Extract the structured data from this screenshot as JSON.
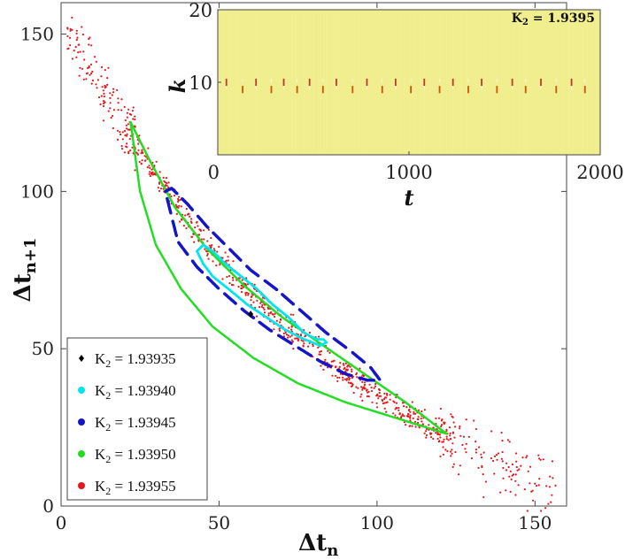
{
  "chart_data": {
    "type": "scatter",
    "main": {
      "xlabel": "Δt",
      "xlabel_sub": "n",
      "ylabel": "Δt",
      "ylabel_sub": "n+1",
      "xlim": [
        0,
        160
      ],
      "ylim": [
        0,
        160
      ],
      "xticks": [
        0,
        50,
        100,
        150
      ],
      "yticks": [
        0,
        50,
        100,
        150
      ],
      "legend_position": "bottom-left",
      "series": [
        {
          "name": "K2 = 1.93935",
          "label": "K",
          "sub": "2",
          "value": " = 1.93935",
          "color": "#000000",
          "marker": "diamond",
          "points": [
            [
              60,
              61
            ]
          ]
        },
        {
          "name": "K2 = 1.93940",
          "label": "K",
          "sub": "2",
          "value": " = 1.93940",
          "color": "#00e5ee",
          "marker": "dot",
          "loop_x": [
            43,
            45,
            48,
            52,
            57,
            62,
            67,
            72,
            77,
            81,
            83,
            84,
            82,
            77,
            71,
            65,
            59,
            53,
            48,
            45,
            43
          ],
          "loop_y": [
            81,
            83,
            81,
            77,
            73,
            69,
            64,
            60,
            55,
            53,
            53,
            52,
            51,
            53,
            56,
            60,
            64,
            69,
            73,
            77,
            81
          ]
        },
        {
          "name": "K2 = 1.93945",
          "label": "K",
          "sub": "2",
          "value": " = 1.93945",
          "color": "#1515c8",
          "marker": "dot",
          "loop_x": [
            33,
            35,
            40,
            46,
            53,
            60,
            68,
            76,
            84,
            92,
            98,
            101,
            97,
            90,
            82,
            74,
            66,
            58,
            50,
            43,
            37,
            33
          ],
          "loop_y": [
            100,
            101,
            96,
            89,
            82,
            75,
            69,
            62,
            55,
            49,
            44,
            40,
            40,
            42,
            46,
            51,
            56,
            62,
            69,
            76,
            84,
            100
          ]
        },
        {
          "name": "K2 = 1.93950",
          "label": "K",
          "sub": "2",
          "value": " = 1.93950",
          "color": "#22dd22",
          "marker": "dot",
          "loop_x": [
            22,
            28,
            36,
            46,
            58,
            70,
            83,
            96,
            109,
            122,
            106,
            90,
            75,
            61,
            48,
            38,
            30,
            25,
            22
          ],
          "loop_y": [
            122,
            110,
            95,
            82,
            70,
            60,
            51,
            42,
            33,
            23,
            28,
            33,
            39,
            47,
            57,
            69,
            83,
            100,
            122
          ]
        },
        {
          "name": "K2 = 1.93955",
          "label": "K",
          "sub": "2",
          "value": " = 1.93955",
          "color": "#e31a1c",
          "marker": "dot",
          "curve_x": [
            2,
            10,
            20,
            30,
            40,
            50,
            60,
            70,
            80,
            90,
            100,
            110,
            120,
            130,
            140,
            150,
            157
          ],
          "curve_y": [
            150,
            138,
            121,
            105,
            91,
            79,
            68,
            58,
            50,
            42,
            35,
            29,
            23,
            17,
            12,
            8,
            5
          ],
          "count": 900
        }
      ]
    },
    "inset": {
      "type": "heatmap",
      "xlabel": "t",
      "ylabel": "k",
      "xlim": [
        0,
        2000
      ],
      "ylim": [
        0,
        20
      ],
      "xticks": [
        0,
        1000,
        2000
      ],
      "xtick_labels": [
        "0",
        "1000",
        "2000"
      ],
      "yticks": [
        10,
        20
      ],
      "annotation_k": "K",
      "annotation_sub": "2",
      "annotation_value": " = 1.9395",
      "background_color": "#f0ee8c",
      "event_times": [
        45,
        130,
        200,
        280,
        345,
        415,
        480,
        550,
        620,
        705,
        780,
        860,
        930,
        1010,
        1080,
        1160,
        1230,
        1310,
        1380,
        1460,
        1540,
        1610,
        1690,
        1770,
        1850,
        1920
      ]
    }
  }
}
